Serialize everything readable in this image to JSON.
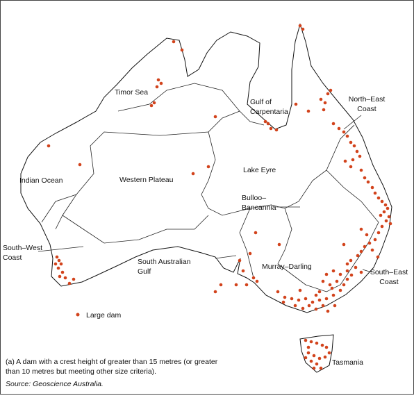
{
  "map": {
    "regions": [
      {
        "lines": [
          "Timor Sea"
        ]
      },
      {
        "lines": [
          "Gulf of",
          "Carpentaria"
        ]
      },
      {
        "lines": [
          "North–East",
          "Coast"
        ]
      },
      {
        "lines": [
          "Indian Ocean"
        ]
      },
      {
        "lines": [
          "Western Plateau"
        ]
      },
      {
        "lines": [
          "Lake Eyre"
        ]
      },
      {
        "lines": [
          "Bulloo–",
          "Bancannia"
        ]
      },
      {
        "lines": [
          "South–West",
          "Coast"
        ]
      },
      {
        "lines": [
          "South Australian",
          "Gulf"
        ]
      },
      {
        "lines": [
          "Murray–Darling"
        ]
      },
      {
        "lines": [
          "South–East",
          "Coast"
        ]
      },
      {
        "lines": [
          "Tasmania"
        ]
      }
    ],
    "legend": {
      "label": "Large dam"
    },
    "footnote": [
      "(a) A dam with a crest height of greater than 15 metres (or greater",
      "than 10 metres but meeting other size criteria)."
    ],
    "source": "Source: Geoscience Australia."
  }
}
